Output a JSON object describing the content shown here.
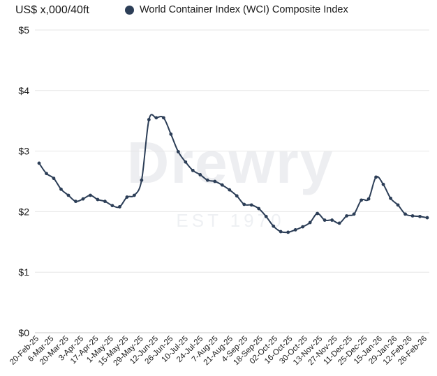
{
  "header": {
    "y_unit_label": "US$ x,000/40ft",
    "legend_label": "World Container Index (WCI) Composite Index"
  },
  "watermark": {
    "brand": "Drewry",
    "since": "EST 1970"
  },
  "chart_data": {
    "type": "line",
    "ylabel": "US$ x,000/40ft",
    "ylim": [
      0,
      5
    ],
    "y_ticks": [
      "$0",
      "$1",
      "$2",
      "$3",
      "$4",
      "$5"
    ],
    "grid": "horizontal",
    "legend_position": "top",
    "color": "#2c3e57",
    "x_tick_labels": [
      "20-Feb-25",
      "6-Mar-25",
      "20-Mar-25",
      "3-Apr-25",
      "17-Apr-25",
      "1-May-25",
      "15-May-25",
      "29-May-25",
      "12-Jun-25",
      "26-Jun-25",
      "10-Jul-25",
      "24-Jul-25",
      "7-Aug-25",
      "21-Aug-25",
      "4-Sep-25",
      "18-Sep-25",
      "02-Oct-25",
      "16-Oct-25",
      "30-Oct-25",
      "13-Nov-25",
      "27-Nov-25",
      "11-Dec-25",
      "25-Dec-25",
      "15-Jan-26",
      "29-Jan-26",
      "12-Feb-26",
      "26-Feb-26"
    ],
    "series": [
      {
        "name": "World Container Index (WCI) Composite Index",
        "values": [
          2.8,
          2.63,
          2.55,
          2.37,
          2.27,
          2.17,
          2.21,
          2.27,
          2.2,
          2.17,
          2.1,
          2.08,
          2.24,
          2.27,
          2.52,
          3.52,
          3.55,
          3.55,
          3.28,
          2.99,
          2.82,
          2.68,
          2.61,
          2.52,
          2.5,
          2.44,
          2.36,
          2.26,
          2.12,
          2.11,
          2.05,
          1.92,
          1.76,
          1.67,
          1.66,
          1.7,
          1.75,
          1.82,
          1.97,
          1.86,
          1.86,
          1.81,
          1.93,
          1.96,
          2.19,
          2.21,
          2.57,
          2.45,
          2.22,
          2.11,
          1.96,
          1.93,
          1.92,
          1.9
        ]
      }
    ]
  }
}
